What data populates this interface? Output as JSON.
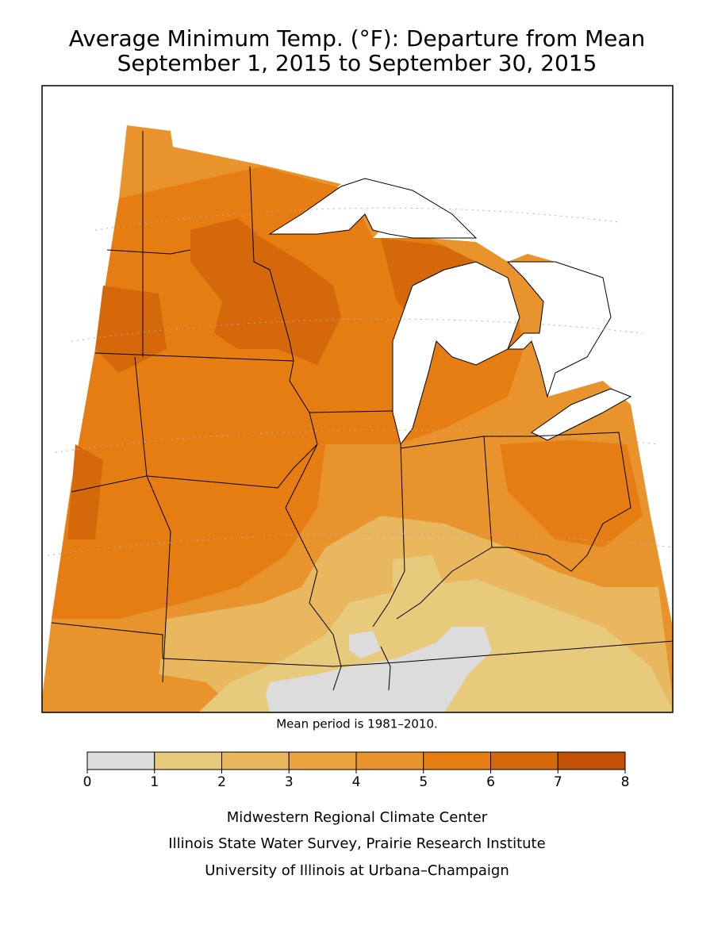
{
  "title": [
    "Average Minimum Temp. (°F): Departure from Mean",
    "September 1, 2015 to September 30, 2015"
  ],
  "note": "Mean period is 1981–2010.",
  "legend": {
    "ticks": [
      0,
      1,
      2,
      3,
      4,
      5,
      6,
      7,
      8
    ],
    "colors": [
      "#dcdcdc",
      "#e8ca7c",
      "#e8b75e",
      "#e8a540",
      "#e8932c",
      "#e67d12",
      "#d4680a",
      "#c05006"
    ]
  },
  "credits": [
    "Midwestern Regional Climate Center",
    "Illinois State Water Survey, Prairie Research Institute",
    "University of Illinois at Urbana–Champaign"
  ]
}
